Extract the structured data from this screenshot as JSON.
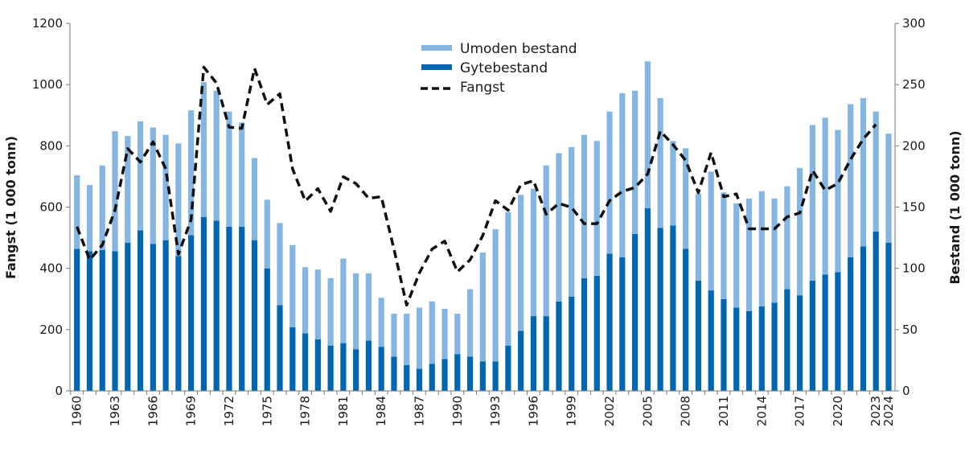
{
  "chart_data": {
    "type": "bar",
    "title": "",
    "colors": {
      "umoden": "#85b6e2",
      "gyte": "#0066b2",
      "fangst": "#111111"
    },
    "legend": {
      "position": "top-center",
      "entries": [
        "Umoden bestand",
        "Gytebestand",
        "Fangst"
      ]
    },
    "y_left": {
      "label": "Fangst (1 000 tonn)",
      "range": [
        0,
        1200
      ],
      "ticks": [
        "0",
        "200",
        "400",
        "600",
        "800",
        "1000",
        "1200"
      ]
    },
    "y_right": {
      "label": "Bestand (1 000 tonn)",
      "range": [
        0,
        300
      ],
      "ticks": [
        "0",
        "50",
        "100",
        "150",
        "200",
        "250",
        "300"
      ]
    },
    "x_tick_labels": [
      "1960",
      "1963",
      "1966",
      "1969",
      "1972",
      "1975",
      "1978",
      "1981",
      "1984",
      "1987",
      "1990",
      "1993",
      "1996",
      "1999",
      "2002",
      "2005",
      "2008",
      "2011",
      "2014",
      "2017",
      "2020",
      "2023",
      "2024"
    ],
    "years": [
      1960,
      1961,
      1962,
      1963,
      1964,
      1965,
      1966,
      1967,
      1968,
      1969,
      1970,
      1971,
      1972,
      1973,
      1974,
      1975,
      1976,
      1977,
      1978,
      1979,
      1980,
      1981,
      1982,
      1983,
      1984,
      1985,
      1986,
      1987,
      1988,
      1989,
      1990,
      1991,
      1992,
      1993,
      1994,
      1995,
      1996,
      1997,
      1998,
      1999,
      2000,
      2001,
      2002,
      2003,
      2004,
      2005,
      2006,
      2007,
      2008,
      2009,
      2010,
      2011,
      2012,
      2013,
      2014,
      2015,
      2016,
      2017,
      2018,
      2019,
      2020,
      2021,
      2022,
      2023,
      2024
    ],
    "series": [
      {
        "name": "Gytebestand",
        "axis": "right",
        "kind": "stacked-bar",
        "values": [
          116,
          114,
          115,
          114,
          121,
          131,
          120,
          123,
          110,
          127,
          142,
          139,
          134,
          134,
          123,
          100,
          70,
          52,
          47,
          42,
          37,
          39,
          34,
          41,
          36,
          28,
          21,
          18,
          22,
          26,
          30,
          28,
          24,
          24,
          37,
          49,
          61,
          61,
          73,
          77,
          92,
          94,
          112,
          109,
          128,
          149,
          133,
          135,
          116,
          90,
          82,
          75,
          68,
          65,
          69,
          72,
          83,
          78,
          90,
          95,
          97,
          109,
          118,
          130,
          121
        ]
      },
      {
        "name": "Umoden bestand",
        "axis": "right",
        "kind": "stacked-bar",
        "note_total": false,
        "values": [
          60,
          54,
          69,
          98,
          87,
          89,
          95,
          86,
          92,
          102,
          110,
          106,
          94,
          85,
          67,
          56,
          67,
          67,
          54,
          57,
          55,
          69,
          62,
          55,
          40,
          35,
          42,
          50,
          51,
          41,
          33,
          55,
          89,
          108,
          109,
          111,
          104,
          123,
          121,
          122,
          117,
          110,
          116,
          134,
          117,
          120,
          106,
          69,
          82,
          71,
          97,
          87,
          85,
          92,
          94,
          85,
          84,
          104,
          127,
          128,
          116,
          125,
          121,
          98,
          89
        ]
      },
      {
        "name": "Fangst",
        "axis": "left",
        "kind": "line",
        "values": [
          536,
          428,
          476,
          590,
          791,
          747,
          813,
          725,
          446,
          559,
          1057,
          1005,
          861,
          857,
          1053,
          935,
          970,
          725,
          620,
          660,
          586,
          699,
          677,
          629,
          634,
          463,
          280,
          385,
          463,
          489,
          389,
          428,
          507,
          621,
          590,
          673,
          686,
          577,
          612,
          599,
          546,
          546,
          621,
          651,
          664,
          708,
          848,
          804,
          752,
          647,
          778,
          634,
          643,
          529,
          529,
          529,
          568,
          581,
          720,
          655,
          677,
          756,
          822,
          870,
          null
        ]
      }
    ]
  }
}
